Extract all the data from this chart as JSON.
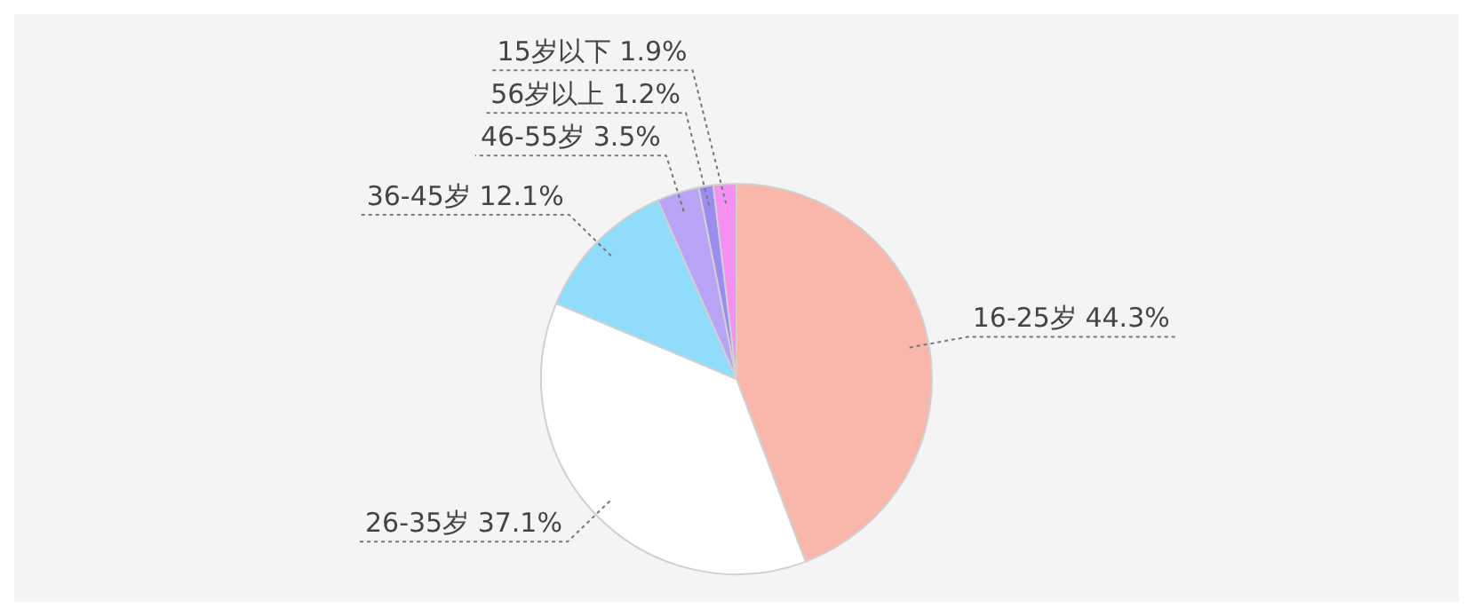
{
  "chart_data": {
    "type": "pie",
    "categories": [
      "16-25岁",
      "26-35岁",
      "36-45岁",
      "46-55岁",
      "56岁以上",
      "15岁以下"
    ],
    "values": [
      44.3,
      37.1,
      12.1,
      3.5,
      1.2,
      1.9
    ],
    "value_labels": [
      "44.3%",
      "37.1%",
      "12.1%",
      "3.5%",
      "1.2%",
      "1.9%"
    ],
    "colors": [
      "#f9b7ab",
      "#ffffff",
      "#8fdcfb",
      "#b9a3f6",
      "#9c8cf2",
      "#f590f2"
    ],
    "legend": false
  }
}
